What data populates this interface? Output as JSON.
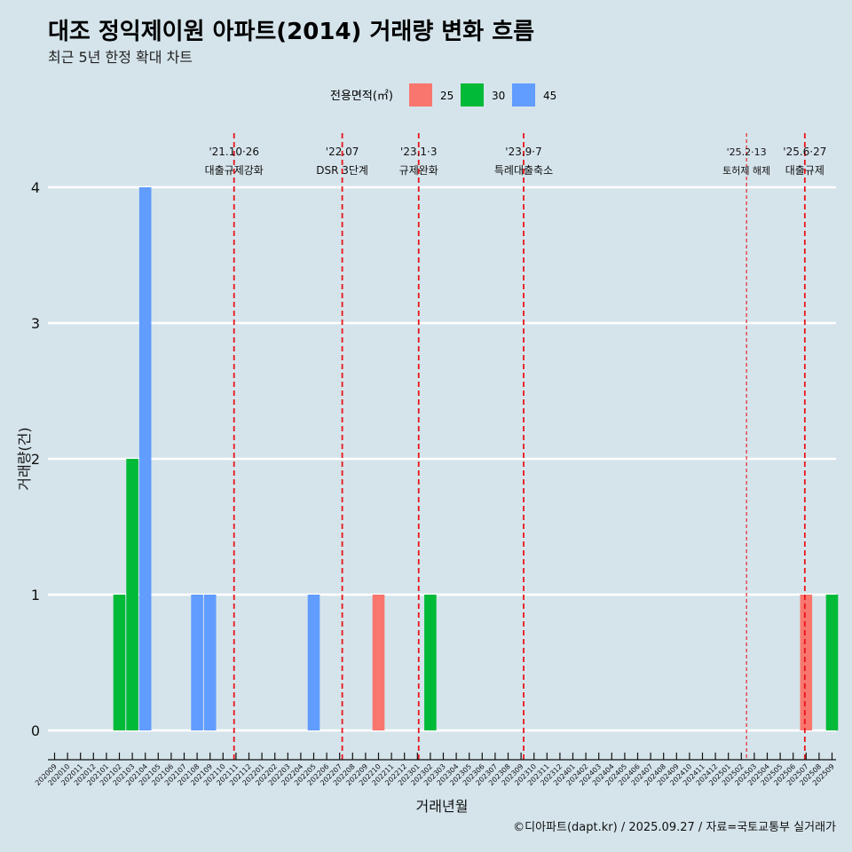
{
  "title": "대조 정익제이원 아파트(2014) 거래량 변화 흐름",
  "subtitle": "최근 5년 한정 확대 차트",
  "caption": "©디아파트(dapt.kr) / 2025.09.27 / 자료=국토교통부 실거래가",
  "legend": {
    "title": "전용면적(㎡)",
    "items": [
      {
        "label": "25",
        "color": "#f8766d"
      },
      {
        "label": "30",
        "color": "#00ba38"
      },
      {
        "label": "45",
        "color": "#619cff"
      }
    ]
  },
  "chart_data": {
    "type": "bar",
    "xlabel": "거래년월",
    "ylabel": "거래량(건)",
    "ylim": [
      0,
      4
    ],
    "yticks": [
      "0",
      "1",
      "2",
      "3",
      "4"
    ],
    "categories": [
      "202009",
      "202010",
      "202011",
      "202012",
      "202101",
      "202102",
      "202103",
      "202104",
      "202105",
      "202106",
      "202107",
      "202108",
      "202109",
      "202110",
      "202111",
      "202112",
      "202201",
      "202202",
      "202203",
      "202204",
      "202205",
      "202206",
      "202207",
      "202208",
      "202209",
      "202210",
      "202211",
      "202212",
      "202301",
      "202302",
      "202303",
      "202304",
      "202305",
      "202306",
      "202307",
      "202308",
      "202309",
      "202310",
      "202311",
      "202312",
      "202401",
      "202402",
      "202403",
      "202404",
      "202405",
      "202406",
      "202407",
      "202408",
      "202409",
      "202410",
      "202411",
      "202412",
      "202501",
      "202502",
      "202503",
      "202504",
      "202505",
      "202506",
      "202507",
      "202508",
      "202509"
    ],
    "series": [
      {
        "name": "25",
        "color": "#f8766d",
        "values": [
          0,
          0,
          0,
          0,
          0,
          0,
          0,
          0,
          0,
          0,
          0,
          0,
          0,
          0,
          0,
          0,
          0,
          0,
          0,
          0,
          0,
          0,
          0,
          0,
          0,
          1,
          0,
          0,
          0,
          0,
          0,
          0,
          0,
          0,
          0,
          0,
          0,
          0,
          0,
          0,
          0,
          0,
          0,
          0,
          0,
          0,
          0,
          0,
          0,
          0,
          0,
          0,
          0,
          0,
          0,
          0,
          0,
          0,
          1,
          0,
          0
        ]
      },
      {
        "name": "30",
        "color": "#00ba38",
        "values": [
          0,
          0,
          0,
          0,
          0,
          1,
          2,
          0,
          0,
          0,
          0,
          0,
          0,
          0,
          0,
          0,
          0,
          0,
          0,
          0,
          0,
          0,
          0,
          0,
          0,
          0,
          0,
          0,
          0,
          1,
          0,
          0,
          0,
          0,
          0,
          0,
          0,
          0,
          0,
          0,
          0,
          0,
          0,
          0,
          0,
          0,
          0,
          0,
          0,
          0,
          0,
          0,
          0,
          0,
          0,
          0,
          0,
          0,
          0,
          0,
          1
        ]
      },
      {
        "name": "45",
        "color": "#619cff",
        "values": [
          0,
          0,
          0,
          0,
          0,
          0,
          0,
          4,
          0,
          0,
          0,
          1,
          1,
          0,
          0,
          0,
          0,
          0,
          0,
          0,
          1,
          0,
          0,
          0,
          0,
          0,
          0,
          0,
          0,
          0,
          0,
          0,
          0,
          0,
          0,
          0,
          0,
          0,
          0,
          0,
          0,
          0,
          0,
          0,
          0,
          0,
          0,
          0,
          0,
          0,
          0,
          0,
          0,
          0,
          0,
          0,
          0,
          0,
          0,
          0,
          0
        ]
      }
    ],
    "annotations": [
      {
        "month": 13.85,
        "line1": "'21.10·26",
        "line2": "대출규제강화",
        "style": "major"
      },
      {
        "month": 22.2,
        "line1": "'22.07",
        "line2": "DSR 3단계",
        "style": "major"
      },
      {
        "month": 28.1,
        "line1": "'23.1·3",
        "line2": "규제완화",
        "style": "major"
      },
      {
        "month": 36.2,
        "line1": "'23.9·7",
        "line2": "특례대출축소",
        "style": "major"
      },
      {
        "month": 53.4,
        "line1": "'25.2·13",
        "line2": "토허제 해제",
        "style": "minor"
      },
      {
        "month": 57.9,
        "line1": "'25.6·27",
        "line2": "대출규제",
        "style": "major"
      }
    ]
  }
}
